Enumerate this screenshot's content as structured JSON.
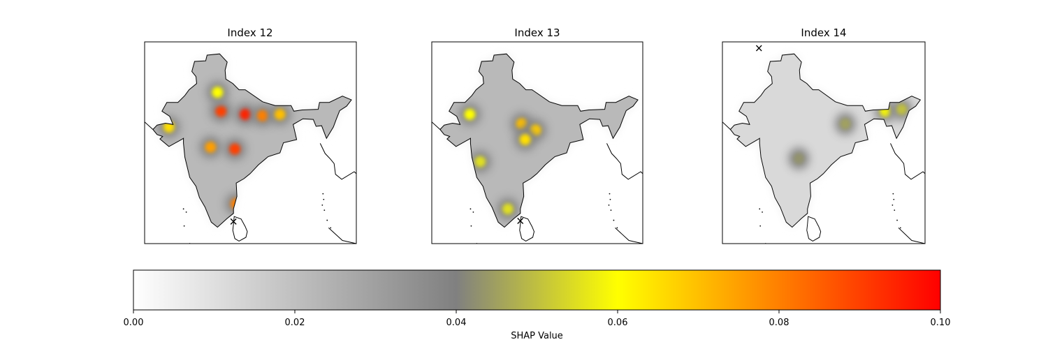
{
  "chart_data": {
    "type": "heatmap",
    "panels": [
      {
        "title": "Index 12",
        "marker": {
          "lon": 79.8,
          "lat": 9.0
        },
        "extent": {
          "lon": [
            67.0,
            97.5
          ],
          "lat": [
            5.5,
            37.5
          ]
        },
        "hotspots": [
          {
            "lon": 78.0,
            "lat": 26.5,
            "value": 0.09
          },
          {
            "lon": 81.5,
            "lat": 26.0,
            "value": 0.095
          },
          {
            "lon": 84.0,
            "lat": 25.8,
            "value": 0.08
          },
          {
            "lon": 86.5,
            "lat": 26.0,
            "value": 0.07
          },
          {
            "lon": 80.0,
            "lat": 20.5,
            "value": 0.09
          },
          {
            "lon": 76.5,
            "lat": 20.8,
            "value": 0.075
          },
          {
            "lon": 80.2,
            "lat": 11.8,
            "value": 0.08
          },
          {
            "lon": 70.5,
            "lat": 24.0,
            "value": 0.065
          },
          {
            "lon": 77.5,
            "lat": 29.5,
            "value": 0.06
          }
        ]
      },
      {
        "title": "Index 13",
        "marker": {
          "lon": 79.8,
          "lat": 9.1
        },
        "extent": {
          "lon": [
            67.0,
            97.5
          ],
          "lat": [
            5.5,
            37.5
          ]
        },
        "hotspots": [
          {
            "lon": 80.0,
            "lat": 24.5,
            "value": 0.07
          },
          {
            "lon": 82.0,
            "lat": 23.5,
            "value": 0.068
          },
          {
            "lon": 80.5,
            "lat": 22.0,
            "value": 0.065
          },
          {
            "lon": 72.5,
            "lat": 26.0,
            "value": 0.06
          },
          {
            "lon": 74.0,
            "lat": 18.5,
            "value": 0.055
          },
          {
            "lon": 78.0,
            "lat": 11.0,
            "value": 0.055
          }
        ]
      },
      {
        "title": "Index 14",
        "marker": {
          "lon": 72.5,
          "lat": 36.5
        },
        "extent": {
          "lon": [
            67.0,
            97.5
          ],
          "lat": [
            5.5,
            37.5
          ]
        },
        "hotspots": [
          {
            "lon": 91.5,
            "lat": 26.5,
            "value": 0.058
          },
          {
            "lon": 94.0,
            "lat": 26.8,
            "value": 0.05
          },
          {
            "lon": 85.5,
            "lat": 24.5,
            "value": 0.045
          },
          {
            "lon": 78.5,
            "lat": 19.0,
            "value": 0.043
          }
        ]
      }
    ],
    "colorbar": {
      "label": "SHAP Value",
      "range": [
        0.0,
        0.1
      ],
      "ticks": [
        "0.00",
        "0.02",
        "0.04",
        "0.06",
        "0.08",
        "0.10"
      ],
      "colors": [
        "#ffffff",
        "#808080",
        "#ffff00",
        "#ff0000"
      ],
      "stops": [
        0.0,
        0.04,
        0.06,
        0.1
      ],
      "orientation": "horizontal"
    }
  }
}
